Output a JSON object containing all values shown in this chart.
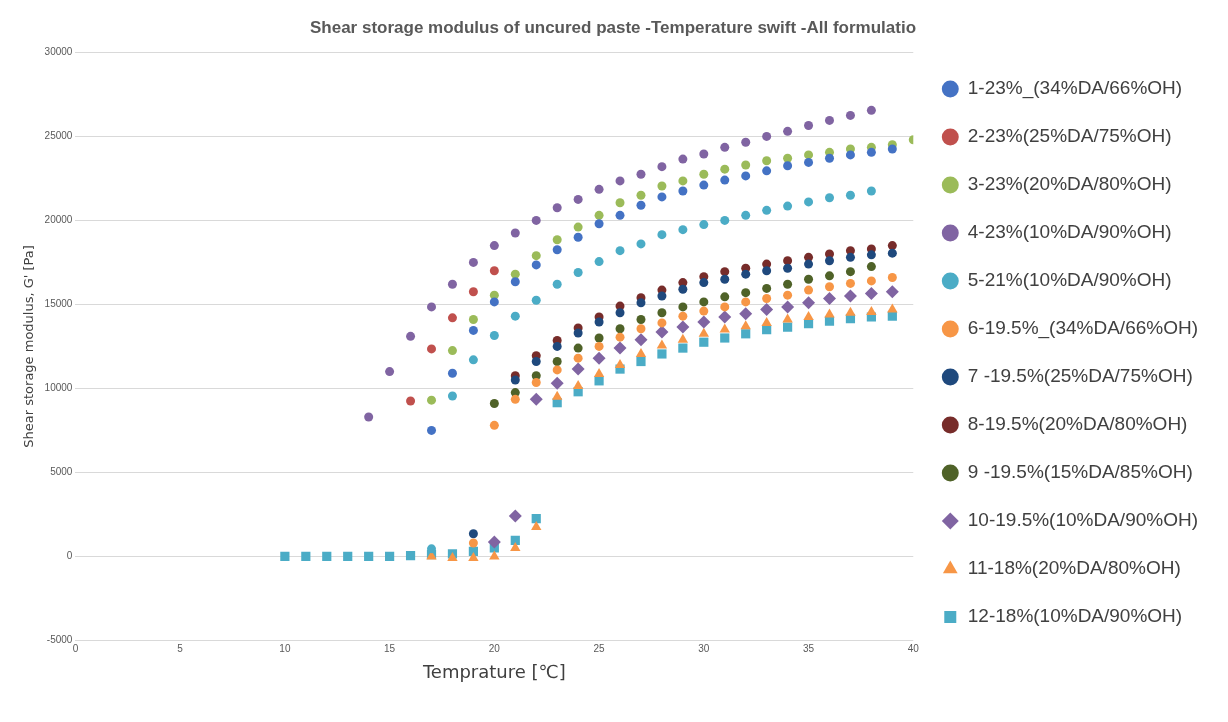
{
  "chart_data": {
    "type": "scatter",
    "title": "Shear storage modulus of uncured paste -Temperature swift -All formulatio",
    "xlabel": "Temprature [℃]",
    "ylabel": "Shear storage modulus, G' [Pa]",
    "xlim": [
      0,
      40
    ],
    "xticks": [
      0,
      5,
      10,
      15,
      20,
      25,
      30,
      35,
      40
    ],
    "ylim": [
      -5000,
      30000
    ],
    "yticks": [
      -5000,
      0,
      5000,
      10000,
      15000,
      20000,
      25000,
      30000
    ],
    "grid": "y",
    "legend": "right",
    "series": [
      {
        "name": "1-23%_(34%DA/66%OH)",
        "color": "#4472c4",
        "marker": "circle",
        "x": [
          17,
          18,
          19,
          20,
          21,
          22,
          23,
          24,
          25,
          26,
          27,
          28,
          29,
          30,
          31,
          32,
          33,
          34,
          35,
          36,
          37,
          38,
          39
        ],
        "values": [
          7500,
          10900,
          13450,
          15150,
          16350,
          17350,
          18250,
          19000,
          19800,
          20300,
          20900,
          21400,
          21750,
          22100,
          22400,
          22650,
          22950,
          23250,
          23450,
          23700,
          23900,
          24050,
          24250
        ]
      },
      {
        "name": "2-23%(25%DA/75%OH)",
        "color": "#c0504d",
        "marker": "circle",
        "x": [
          16,
          17,
          18,
          19,
          20
        ],
        "values": [
          9250,
          12350,
          14200,
          15750,
          17000
        ]
      },
      {
        "name": "3-23%(20%DA/80%OH)",
        "color": "#9bbb59",
        "marker": "circle",
        "x": [
          17,
          18,
          19,
          20,
          21,
          22,
          23,
          24,
          25,
          26,
          27,
          28,
          29,
          30,
          31,
          32,
          33,
          34,
          35,
          36,
          37,
          38,
          39,
          40
        ],
        "values": [
          9300,
          12250,
          14100,
          15550,
          16800,
          17900,
          18850,
          19600,
          20300,
          21050,
          21500,
          22050,
          22350,
          22750,
          23050,
          23300,
          23550,
          23700,
          23900,
          24050,
          24250,
          24350,
          24500,
          24800
        ]
      },
      {
        "name": "4-23%(10%DA/90%OH)",
        "color": "#8064a2",
        "marker": "circle",
        "x": [
          14,
          15,
          16,
          17,
          18,
          19,
          20,
          21,
          22,
          23,
          24,
          25,
          26,
          27,
          28,
          29,
          30,
          31,
          32,
          33,
          34,
          35,
          36,
          37,
          38
        ],
        "values": [
          8300,
          11000,
          13100,
          14850,
          16200,
          17500,
          18500,
          19250,
          20000,
          20750,
          21250,
          21850,
          22350,
          22750,
          23200,
          23650,
          23950,
          24350,
          24650,
          25000,
          25300,
          25650,
          25950,
          26250,
          26550
        ]
      },
      {
        "name": "5-21%(10%DA/90%OH)",
        "color": "#4bacc6",
        "marker": "circle",
        "x": [
          17,
          18,
          19,
          20,
          21,
          22,
          23,
          24,
          25,
          26,
          27,
          28,
          29,
          30,
          31,
          32,
          33,
          34,
          35,
          36,
          37,
          38
        ],
        "values": [
          450,
          9550,
          11700,
          13150,
          14300,
          15250,
          16200,
          16900,
          17550,
          18200,
          18600,
          19150,
          19450,
          19750,
          20000,
          20300,
          20600,
          20850,
          21100,
          21350,
          21500,
          21750
        ]
      },
      {
        "name": "6-19.5%_(34%DA/66%OH)",
        "color": "#f79646",
        "marker": "circle",
        "x": [
          19,
          20,
          21,
          22,
          23,
          24,
          25,
          26,
          27,
          28,
          29,
          30,
          31,
          32,
          33,
          34,
          35,
          36,
          37,
          38,
          39
        ],
        "values": [
          800,
          7800,
          9350,
          10350,
          11100,
          11800,
          12500,
          13050,
          13550,
          13900,
          14300,
          14600,
          14850,
          15150,
          15350,
          15550,
          15850,
          16050,
          16250,
          16400,
          16600
        ]
      },
      {
        "name": "7 -19.5%(25%DA/75%OH)",
        "color": "#1f497d",
        "marker": "circle",
        "x": [
          19,
          20,
          21,
          22,
          23,
          24,
          25,
          26,
          27,
          28,
          29,
          30,
          31,
          32,
          33,
          34,
          35,
          36,
          37,
          38,
          39
        ],
        "values": [
          1350,
          null,
          10500,
          11600,
          12500,
          13300,
          13950,
          14500,
          15100,
          15500,
          15900,
          16300,
          16500,
          16800,
          17000,
          17150,
          17400,
          17600,
          17800,
          17950,
          18050
        ]
      },
      {
        "name": "8-19.5%(20%DA/80%OH)",
        "color": "#772c2a",
        "marker": "circle",
        "x": [
          21,
          22,
          23,
          24,
          25,
          26,
          27,
          28,
          29,
          30,
          31,
          32,
          33,
          34,
          35,
          36,
          37,
          38,
          39
        ],
        "values": [
          10750,
          11950,
          12850,
          13600,
          14250,
          14900,
          15400,
          15850,
          16300,
          16650,
          16950,
          17150,
          17400,
          17600,
          17800,
          18000,
          18200,
          18300,
          18500
        ]
      },
      {
        "name": "9 -19.5%(15%DA/85%OH)",
        "color": "#4f6228",
        "marker": "circle",
        "x": [
          20,
          21,
          22,
          23,
          24,
          25,
          26,
          27,
          28,
          29,
          30,
          31,
          32,
          33,
          34,
          35,
          36,
          37,
          38
        ],
        "values": [
          9100,
          9750,
          10750,
          11600,
          12400,
          13000,
          13550,
          14100,
          14500,
          14850,
          15150,
          15450,
          15700,
          15950,
          16200,
          16500,
          16700,
          16950,
          17250
        ]
      },
      {
        "name": "10-19.5%(10%DA/90%OH)",
        "color": "#8064a2",
        "marker": "diamond",
        "x": [
          20,
          21,
          22,
          23,
          24,
          25,
          26,
          27,
          28,
          29,
          30,
          31,
          32,
          33,
          34,
          35,
          36,
          37,
          38,
          39
        ],
        "values": [
          850,
          2400,
          9350,
          10300,
          11150,
          11800,
          12400,
          12900,
          13350,
          13650,
          13950,
          14250,
          14450,
          14700,
          14850,
          15100,
          15350,
          15500,
          15650,
          15750
        ]
      },
      {
        "name": "11-18%(20%DA/80%OH)",
        "color": "#f79646",
        "marker": "triangle",
        "x": [
          17,
          18,
          19,
          20,
          21,
          22,
          23,
          24,
          25,
          26,
          27,
          28,
          29,
          30,
          31,
          32,
          33,
          34,
          35,
          36,
          37,
          38,
          39
        ],
        "values": [
          0,
          -100,
          -100,
          0,
          500,
          1750,
          9500,
          10150,
          10850,
          11400,
          12050,
          12550,
          12900,
          13250,
          13500,
          13700,
          13900,
          14100,
          14250,
          14400,
          14500,
          14550,
          14700
        ]
      },
      {
        "name": "12-18%(10%DA/90%OH)",
        "color": "#4bacc6",
        "marker": "square",
        "x": [
          10,
          11,
          12,
          13,
          14,
          15,
          16,
          17,
          18,
          19,
          20,
          21,
          22,
          23,
          24,
          25,
          26,
          27,
          28,
          29,
          30,
          31,
          32,
          33,
          34,
          35,
          36,
          37,
          38,
          39
        ],
        "values": [
          0,
          0,
          0,
          0,
          0,
          0,
          50,
          100,
          150,
          300,
          500,
          950,
          2250,
          9150,
          9800,
          10450,
          11150,
          11600,
          12050,
          12400,
          12750,
          13000,
          13250,
          13500,
          13650,
          13850,
          14000,
          14150,
          14250,
          14300
        ]
      }
    ]
  }
}
